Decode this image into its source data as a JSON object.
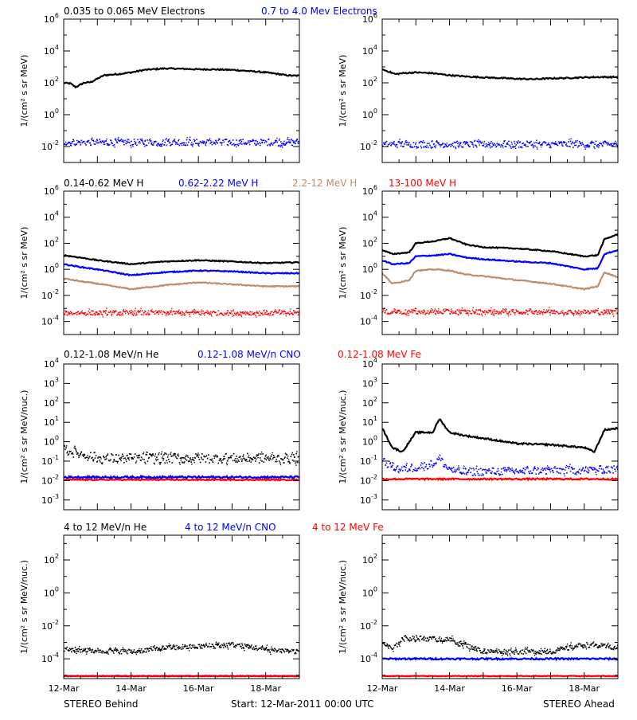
{
  "chart_data": [
    {
      "type": "scatter",
      "id": "p0",
      "ylabel": "1/(cm² s sr MeV)",
      "ylim_exp": [
        -3,
        6
      ],
      "tick_exps": [
        -2,
        0,
        2,
        4,
        6
      ],
      "series": [
        {
          "name": "0.035 to 0.065 MeV Electrons",
          "color": "#000000",
          "x": [
            0,
            0.2,
            0.35,
            0.4,
            0.6,
            0.8,
            1.0,
            1.2,
            1.6,
            2.0,
            2.4,
            3.0,
            3.6,
            4.0,
            4.4,
            5.0,
            5.5,
            6.0,
            6.4,
            6.6,
            6.8,
            7.0
          ],
          "y": [
            100,
            90,
            55,
            60,
            100,
            110,
            180,
            300,
            350,
            450,
            650,
            800,
            750,
            700,
            700,
            650,
            550,
            450,
            350,
            300,
            280,
            280
          ]
        },
        {
          "name": "0.7 to 4.0 Mev Electrons",
          "color": "#0000ff",
          "x": [
            0,
            7
          ],
          "y": [
            0.02,
            0.02
          ],
          "noise": 0.2
        }
      ]
    },
    {
      "type": "scatter",
      "id": "p1",
      "ylabel": "1/(cm² s sr MeV)",
      "ylim_exp": [
        -3,
        6
      ],
      "tick_exps": [
        -2,
        0,
        2,
        4,
        6
      ],
      "series": [
        {
          "name": "0.035 to 0.065 MeV Electrons",
          "color": "#000000",
          "x": [
            0,
            0.2,
            0.4,
            0.6,
            1.0,
            1.5,
            2.0,
            2.5,
            3.0,
            3.5,
            4.0,
            4.5,
            5.0,
            5.5,
            6.0,
            6.5,
            7.0
          ],
          "y": [
            700,
            500,
            350,
            400,
            450,
            400,
            300,
            250,
            220,
            200,
            180,
            170,
            190,
            200,
            220,
            230,
            230
          ]
        },
        {
          "name": "0.7 to 4.0 Mev Electrons",
          "color": "#0000ff",
          "x": [
            0,
            7
          ],
          "y": [
            0.015,
            0.015
          ],
          "noise": 0.2
        }
      ]
    },
    {
      "type": "scatter",
      "id": "p2",
      "ylabel": "1/(cm² s sr MeV)",
      "ylim_exp": [
        -5,
        6
      ],
      "tick_exps": [
        -4,
        -2,
        0,
        2,
        4,
        6
      ],
      "series": [
        {
          "name": "0.14-0.62 MeV H",
          "color": "#000000",
          "x": [
            0,
            0.5,
            1.0,
            2.0,
            3.0,
            4.0,
            5.0,
            6.0,
            7.0
          ],
          "y": [
            12,
            8,
            5,
            2.5,
            4,
            5,
            4,
            3,
            3.5
          ]
        },
        {
          "name": "0.62-2.22 MeV H",
          "color": "#0000ff",
          "x": [
            0,
            0.5,
            1.0,
            2.0,
            3.0,
            4.0,
            5.0,
            6.0,
            7.0
          ],
          "y": [
            2.5,
            1.5,
            1,
            0.35,
            0.6,
            0.8,
            0.7,
            0.5,
            0.5
          ]
        },
        {
          "name": "2.2-12 MeV H",
          "color": "#bc8f6f",
          "x": [
            0,
            0.5,
            1.0,
            2.0,
            3.0,
            4.0,
            5.0,
            6.0,
            7.0
          ],
          "y": [
            0.2,
            0.12,
            0.08,
            0.03,
            0.06,
            0.1,
            0.07,
            0.05,
            0.05
          ]
        },
        {
          "name": "13-100 MeV H",
          "color": "#ff0000",
          "x": [
            0,
            7
          ],
          "y": [
            0.0005,
            0.0005
          ],
          "noise": 0.18
        }
      ]
    },
    {
      "type": "scatter",
      "id": "p3",
      "ylabel": "1/(cm² s sr MeV)",
      "ylim_exp": [
        -5,
        6
      ],
      "tick_exps": [
        -4,
        -2,
        0,
        2,
        4,
        6
      ],
      "series": [
        {
          "name": "0.14-0.62 MeV H",
          "color": "#000000",
          "x": [
            0,
            0.3,
            0.8,
            1.0,
            1.6,
            2.0,
            2.5,
            3.0,
            4.0,
            5.0,
            6.0,
            6.4,
            6.6,
            7.0
          ],
          "y": [
            30,
            15,
            20,
            100,
            150,
            250,
            80,
            50,
            40,
            25,
            10,
            12,
            200,
            500
          ]
        },
        {
          "name": "0.62-2.22 MeV H",
          "color": "#0000ff",
          "x": [
            0,
            0.3,
            0.8,
            1.0,
            1.6,
            2.0,
            2.5,
            3.0,
            4.0,
            5.0,
            6.0,
            6.4,
            6.6,
            7.0
          ],
          "y": [
            5,
            2.5,
            3,
            10,
            12,
            15,
            8,
            6,
            4,
            3,
            1,
            1.2,
            15,
            30
          ]
        },
        {
          "name": "2.2-12 MeV H",
          "color": "#bc8f6f",
          "x": [
            0,
            0.3,
            0.8,
            1.0,
            1.6,
            2.0,
            2.5,
            3.0,
            4.0,
            5.0,
            6.0,
            6.4,
            6.6,
            7.0
          ],
          "y": [
            0.5,
            0.08,
            0.15,
            0.8,
            1,
            0.8,
            0.4,
            0.3,
            0.15,
            0.08,
            0.03,
            0.05,
            0.6,
            0.25
          ]
        },
        {
          "name": "13-100 MeV H",
          "color": "#ff0000",
          "x": [
            0,
            7
          ],
          "y": [
            0.0006,
            0.0006
          ],
          "noise": 0.18
        }
      ]
    },
    {
      "type": "scatter",
      "id": "p4",
      "ylabel": "1/(cm² s sr MeV/nuc.)",
      "ylim_exp": [
        -3.5,
        4
      ],
      "tick_exps": [
        -3,
        -2,
        -1,
        0,
        1,
        2,
        3,
        4
      ],
      "series": [
        {
          "name": "0.12-1.08 MeV/n He",
          "color": "#000000",
          "x": [
            0,
            0.5,
            1.0,
            7.0
          ],
          "y": [
            0.4,
            0.25,
            0.15,
            0.15
          ],
          "noise": 0.25
        },
        {
          "name": "0.12-1.08 MeV/n CNO",
          "color": "#0000ff",
          "x": [
            0,
            7
          ],
          "y": [
            0.015,
            0.015
          ],
          "noise": 0.05
        },
        {
          "name": "0.12-1.08 MeV Fe",
          "color": "#ff0000",
          "x": [
            0,
            7
          ],
          "y": [
            0.011,
            0.011
          ],
          "noise": 0.03
        }
      ]
    },
    {
      "type": "scatter",
      "id": "p5",
      "ylabel": "1/(cm² s sr MeV/nuc.)",
      "ylim_exp": [
        -3.5,
        4
      ],
      "tick_exps": [
        -3,
        -2,
        -1,
        0,
        1,
        2,
        3,
        4
      ],
      "series": [
        {
          "name": "0.12-1.08 MeV/n He",
          "color": "#000000",
          "x": [
            0,
            0.3,
            0.6,
            1.0,
            1.5,
            1.7,
            2.0,
            2.5,
            3.0,
            4.0,
            5.0,
            6.0,
            6.3,
            6.6,
            7.0
          ],
          "y": [
            5,
            0.5,
            0.3,
            3,
            3,
            15,
            3,
            2,
            1.5,
            0.8,
            0.7,
            0.5,
            0.3,
            4,
            5
          ]
        },
        {
          "name": "0.12-1.08 MeV/n CNO",
          "color": "#0000ff",
          "x": [
            0,
            0.5,
            1.0,
            1.5,
            1.7,
            1.9,
            2.2,
            7.0
          ],
          "y": [
            0.1,
            0.04,
            0.05,
            0.08,
            0.15,
            0.05,
            0.03,
            0.04
          ],
          "noise": 0.2
        },
        {
          "name": "0.12-1.08 MeV Fe",
          "color": "#ff0000",
          "x": [
            0,
            7
          ],
          "y": [
            0.012,
            0.012
          ],
          "noise": 0.04
        }
      ]
    },
    {
      "type": "scatter",
      "id": "p6",
      "ylabel": "1/(cm² s sr MeV/nuc.)",
      "ylim_exp": [
        -5.2,
        3.5
      ],
      "tick_exps": [
        -4,
        -2,
        0,
        2
      ],
      "series": [
        {
          "name": "4 to 12 MeV/n He",
          "color": "#000000",
          "x": [
            0,
            2.0,
            3.0,
            4.0,
            5.0,
            6.0,
            7.0
          ],
          "y": [
            0.0004,
            0.0003,
            0.0005,
            0.0006,
            0.0008,
            0.0004,
            0.0003
          ],
          "noise": 0.15
        },
        {
          "name": "4 to 12 MeV/n CNO",
          "color": "#0000ff",
          "x": [
            0,
            7
          ],
          "y": [
            9e-06,
            9e-06
          ],
          "noise": 0.02
        },
        {
          "name": "4 to 12 MeV Fe",
          "color": "#ff0000",
          "x": [
            0,
            7
          ],
          "y": [
            9e-06,
            9e-06
          ],
          "noise": 0.02
        }
      ]
    },
    {
      "type": "scatter",
      "id": "p7",
      "ylabel": "1/(cm² s sr MeV/nuc.)",
      "ylim_exp": [
        -5.2,
        3.5
      ],
      "tick_exps": [
        -4,
        -2,
        0,
        2
      ],
      "series": [
        {
          "name": "4 to 12 MeV/n He",
          "color": "#000000",
          "x": [
            0,
            0.3,
            0.6,
            1.0,
            2.0,
            3.0,
            4.0,
            5.0,
            6.0,
            7.0
          ],
          "y": [
            0.001,
            0.0004,
            0.002,
            0.002,
            0.0015,
            0.0003,
            0.0003,
            0.0003,
            0.0008,
            0.0005
          ],
          "noise": 0.15
        },
        {
          "name": "4 to 12 MeV/n CNO",
          "color": "#0000ff",
          "x": [
            0,
            7
          ],
          "y": [
            0.0001,
            0.0001
          ],
          "noise": 0.05
        },
        {
          "name": "4 to 12 MeV Fe",
          "color": "#ff0000",
          "x": [
            0,
            7
          ],
          "y": [
            9e-06,
            9e-06
          ],
          "noise": 0.02
        }
      ]
    }
  ],
  "x_axis": {
    "range_days": [
      0,
      7
    ],
    "ticks": [
      {
        "day": 0,
        "label": "12-Mar"
      },
      {
        "day": 2,
        "label": "14-Mar"
      },
      {
        "day": 4,
        "label": "16-Mar"
      },
      {
        "day": 6,
        "label": "18-Mar"
      }
    ]
  },
  "legends": {
    "electrons": [
      "0.035 to 0.065 MeV Electrons",
      "0.7 to 4.0 Mev Electrons"
    ],
    "protons": [
      "0.14-0.62 MeV H",
      "0.62-2.22 MeV H",
      "2.2-12 MeV H",
      "13-100 MeV H"
    ],
    "low_energy_ions": [
      "0.12-1.08 MeV/n He",
      "0.12-1.08 MeV/n CNO",
      "0.12-1.08 MeV Fe"
    ],
    "high_energy_ions": [
      "4 to 12 MeV/n He",
      "4 to 12 MeV/n CNO",
      "4 to 12 MeV Fe"
    ]
  },
  "legend_colors": {
    "black": "#000000",
    "blue": "#0000ff",
    "tan": "#bc8f6f",
    "red": "#ff0000"
  },
  "footer": {
    "left": "STEREO Behind",
    "center": "Start: 12-Mar-2011 00:00 UTC",
    "right": "STEREO Ahead"
  }
}
